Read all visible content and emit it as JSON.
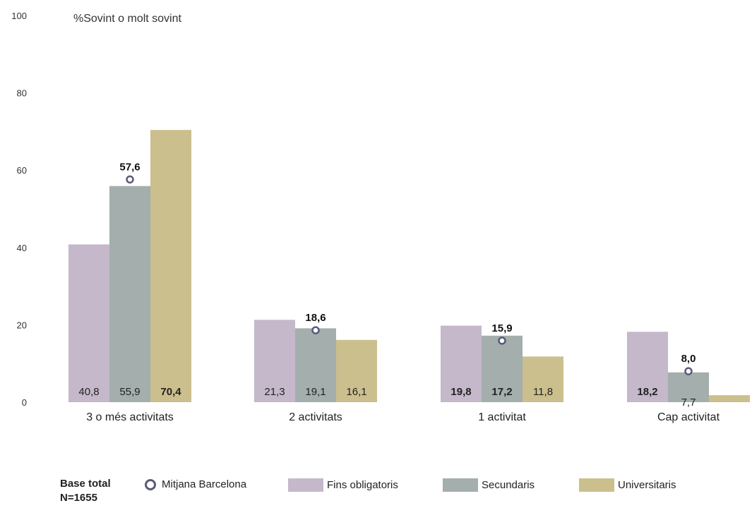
{
  "chart_data": {
    "type": "bar",
    "title": "%Sovint o molt sovint",
    "ylim": [
      0,
      100
    ],
    "yticks": [
      0,
      20,
      40,
      60,
      80,
      100
    ],
    "categories": [
      "3 o més activitats",
      "2 activitats",
      "1 activitat",
      "Cap activitat"
    ],
    "series": [
      {
        "name": "Fins obligatoris",
        "color": "#c4b8ca",
        "values": [
          40.8,
          21.3,
          19.8,
          18.2
        ],
        "labels": [
          "40,8",
          "21,3",
          "19,8",
          "18,2"
        ],
        "bold": [
          false,
          false,
          true,
          true
        ]
      },
      {
        "name": "Secundaris",
        "color": "#a3aead",
        "values": [
          55.9,
          19.1,
          17.2,
          7.7
        ],
        "labels": [
          "55,9",
          "19,1",
          "17,2",
          "7,7"
        ],
        "bold": [
          false,
          false,
          true,
          false
        ]
      },
      {
        "name": "Universitaris",
        "color": "#cbbf8d",
        "values": [
          70.4,
          16.1,
          11.8,
          1.8
        ],
        "labels": [
          "70,4",
          "16,1",
          "11,8",
          ""
        ],
        "bold": [
          true,
          false,
          false,
          false
        ]
      }
    ],
    "average": {
      "name": "Mitjana Barcelona",
      "values": [
        57.6,
        18.6,
        15.9,
        8.0
      ],
      "labels": [
        "57,6",
        "18,6",
        "15,9",
        "8,0"
      ]
    },
    "grid": false
  },
  "legend": {
    "base_line1": "Base total",
    "base_line2": "N=1655",
    "average_label": "Mitjana Barcelona",
    "series_labels": [
      "Fins obligatoris",
      "Secundaris",
      "Universitaris"
    ],
    "circle_color": "#5a5a7a"
  }
}
